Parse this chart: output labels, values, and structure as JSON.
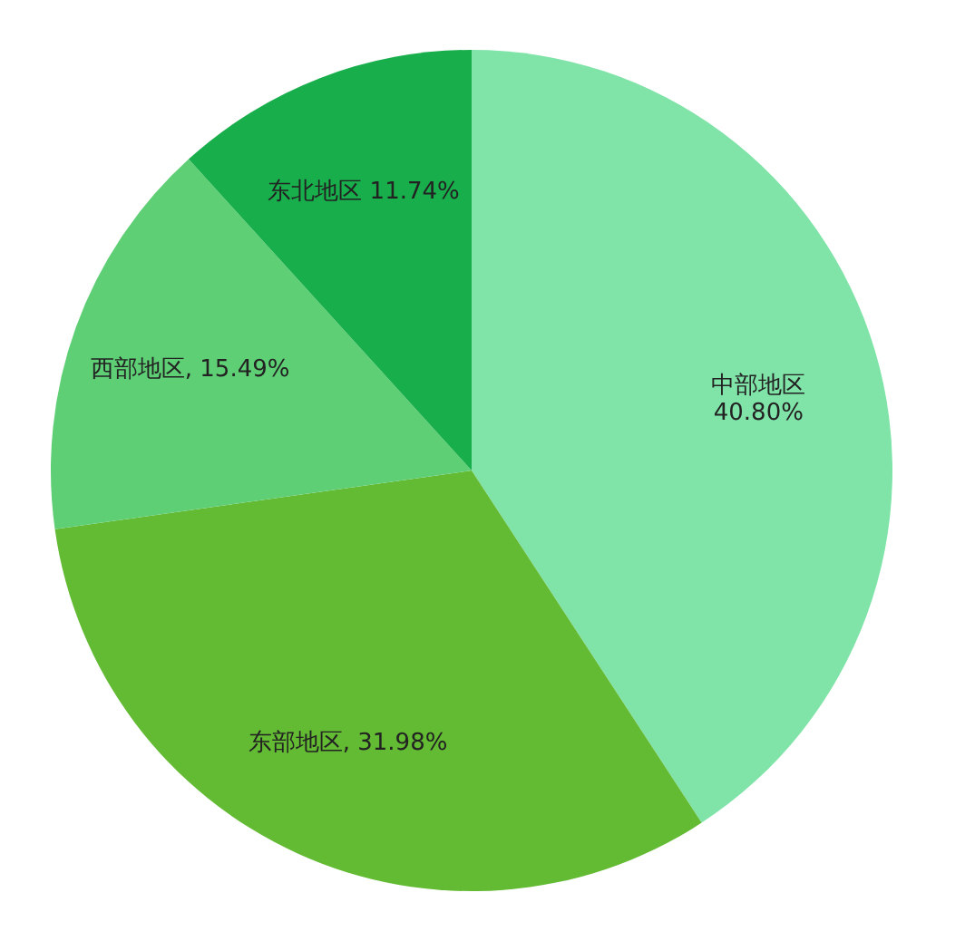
{
  "chart_data": {
    "type": "pie",
    "categories": [
      "中部地区",
      "东部地区",
      "西部地区",
      "东北地区"
    ],
    "values": [
      40.8,
      31.98,
      15.49,
      11.74
    ],
    "colors": [
      "#80e3a8",
      "#63ba33",
      "#5fcf76",
      "#19ae4c"
    ],
    "value_labels": [
      "40.80%",
      "31.98%",
      "15.49%",
      "11.74%"
    ]
  }
}
